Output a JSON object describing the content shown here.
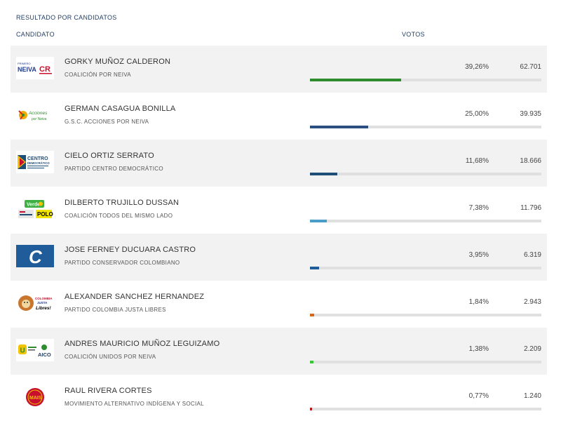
{
  "header": {
    "section_title": "RESULTADO POR CANDIDATOS",
    "col_candidate": "CANDIDATO",
    "col_votes": "VOTOS"
  },
  "candidates": [
    {
      "name": "GORKY MUÑOZ CALDERON",
      "party": "COALICIÓN POR NEIVA",
      "pct": "39,26%",
      "votes": "62.701",
      "share": 0.3926,
      "color": "#2e8b2e",
      "logo_icon": "coalicion-por-neiva-logo",
      "logo_text": [
        "PRIMERO",
        "NEIVA",
        "CR"
      ]
    },
    {
      "name": "GERMAN CASAGUA BONILLA",
      "party": "G.S.C. ACCIONES POR NEIVA",
      "pct": "25,00%",
      "votes": "39.935",
      "share": 0.25,
      "color": "#2b4f81",
      "logo_icon": "acciones-por-neiva-logo",
      "logo_text": [
        "Acciones",
        "por Neiva"
      ]
    },
    {
      "name": "CIELO ORTIZ SERRATO",
      "party": "PARTIDO CENTRO DEMOCRÁTICO",
      "pct": "11,68%",
      "votes": "18.666",
      "share": 0.1168,
      "color": "#1f4e79",
      "logo_icon": "centro-democratico-logo",
      "logo_text": [
        "CENTRO",
        "DEMOCRÁTICO"
      ]
    },
    {
      "name": "DILBERTO TRUJILLO DUSSAN",
      "party": "COALICIÓN TODOS DEL MISMO LADO",
      "pct": "7,38%",
      "votes": "11.796",
      "share": 0.0738,
      "color": "#4a9cc9",
      "logo_icon": "todos-del-mismo-lado-logo",
      "logo_text": [
        "Verde",
        "POLO"
      ]
    },
    {
      "name": "JOSE FERNEY DUCUARA CASTRO",
      "party": "PARTIDO CONSERVADOR COLOMBIANO",
      "pct": "3,95%",
      "votes": "6.319",
      "share": 0.0395,
      "color": "#1f5c99",
      "logo_icon": "partido-conservador-logo",
      "logo_text": [
        "C"
      ]
    },
    {
      "name": "ALEXANDER SANCHEZ HERNANDEZ",
      "party": "PARTIDO COLOMBIA JUSTA LIBRES",
      "pct": "1,84%",
      "votes": "2.943",
      "share": 0.0184,
      "color": "#d2691e",
      "logo_icon": "colombia-justa-libres-logo",
      "logo_text": [
        "COLOMBIA",
        "JUSTA",
        "Libres!"
      ]
    },
    {
      "name": "ANDRES MAURICIO MUÑOZ LEGUIZAMO",
      "party": "COALICIÓN UNIDOS POR NEIVA",
      "pct": "1,38%",
      "votes": "2.209",
      "share": 0.0138,
      "color": "#3cc43c",
      "logo_icon": "unidos-por-neiva-logo",
      "logo_text": [
        "U",
        "AICO"
      ]
    },
    {
      "name": "RAUL RIVERA CORTES",
      "party": "MOVIMIENTO ALTERNATIVO INDÍGENA Y SOCIAL",
      "pct": "0,77%",
      "votes": "1.240",
      "share": 0.0077,
      "color": "#b22222",
      "logo_icon": "mais-logo",
      "logo_text": [
        "MAIS"
      ]
    }
  ]
}
